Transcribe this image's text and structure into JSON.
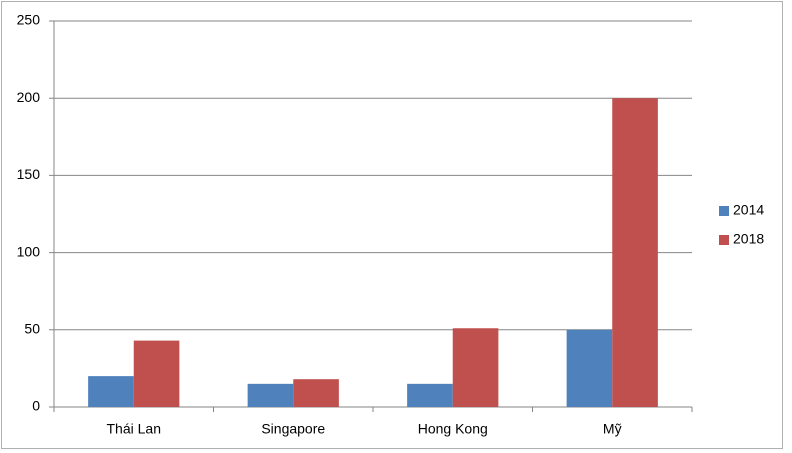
{
  "chart_data": {
    "type": "bar",
    "categories": [
      "Thái Lan",
      "Singapore",
      "Hong Kong",
      "Mỹ"
    ],
    "series": [
      {
        "name": "2014",
        "color": "#4f81bd",
        "values": [
          20,
          15,
          15,
          50
        ]
      },
      {
        "name": "2018",
        "color": "#c0504d",
        "values": [
          43,
          18,
          51,
          200
        ]
      }
    ],
    "ylim": [
      0,
      250
    ],
    "yticks": [
      0,
      50,
      100,
      150,
      200,
      250
    ],
    "grid": true,
    "legend": "right"
  }
}
